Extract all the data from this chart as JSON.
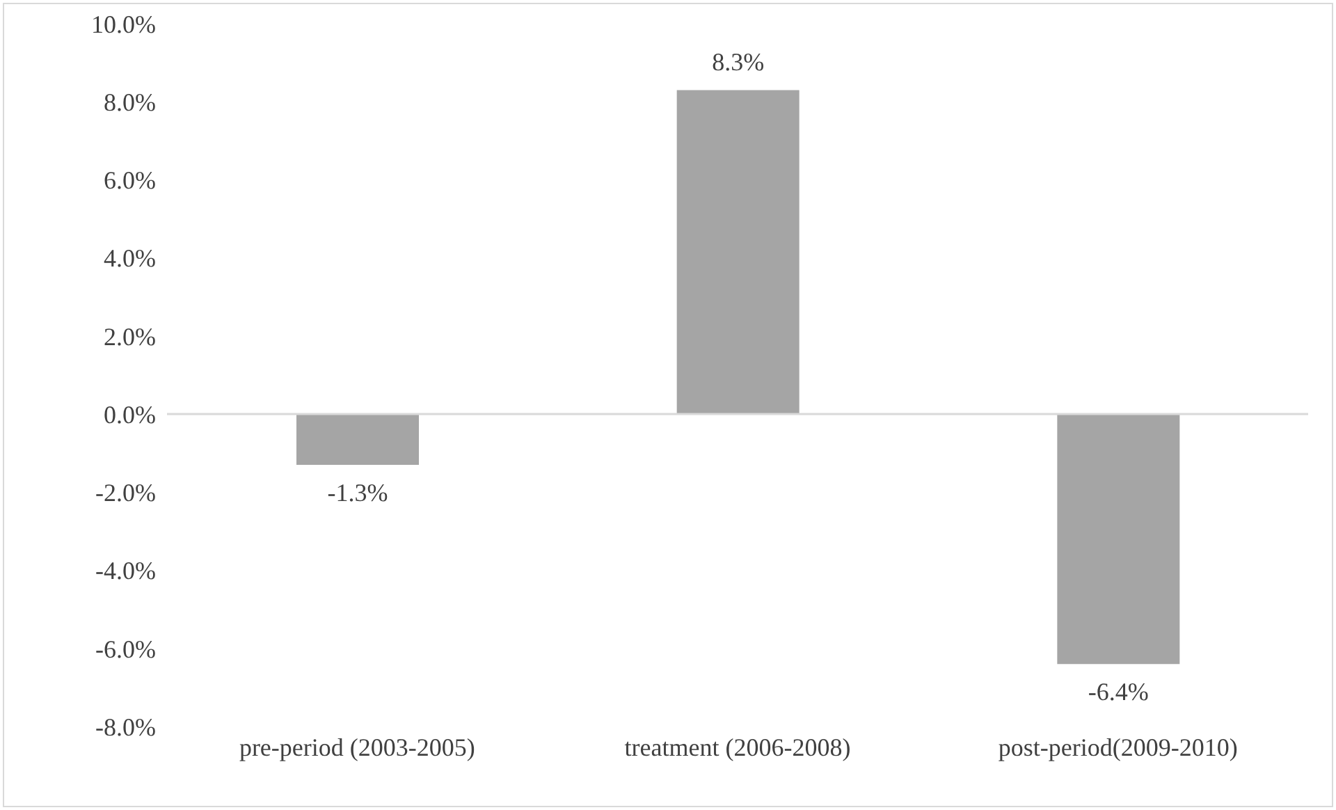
{
  "chart_data": {
    "type": "bar",
    "categories": [
      "pre-period (2003-2005)",
      "treatment (2006-2008)",
      "post-period(2009-2010)"
    ],
    "values": [
      -1.3,
      8.3,
      -6.4
    ],
    "color": "#a5a5a5",
    "ylim": [
      -8,
      10
    ],
    "yticks": [
      {
        "value": -8,
        "label": "-8.0%"
      },
      {
        "value": -6,
        "label": "-6.0%"
      },
      {
        "value": -4,
        "label": "-4.0%"
      },
      {
        "value": -2,
        "label": "-2.0%"
      },
      {
        "value": 0,
        "label": "0.0%"
      },
      {
        "value": 2,
        "label": "2.0%"
      },
      {
        "value": 4,
        "label": "4.0%"
      },
      {
        "value": 6,
        "label": "6.0%"
      },
      {
        "value": 8,
        "label": "8.0%"
      },
      {
        "value": 10,
        "label": "10.0%"
      }
    ],
    "value_labels": [
      "-1.3%",
      "8.3%",
      "-6.4%"
    ],
    "ref_lines": [
      {
        "axis": "y",
        "value": 0,
        "color": "#d9d9d9"
      }
    ],
    "grid": false
  }
}
